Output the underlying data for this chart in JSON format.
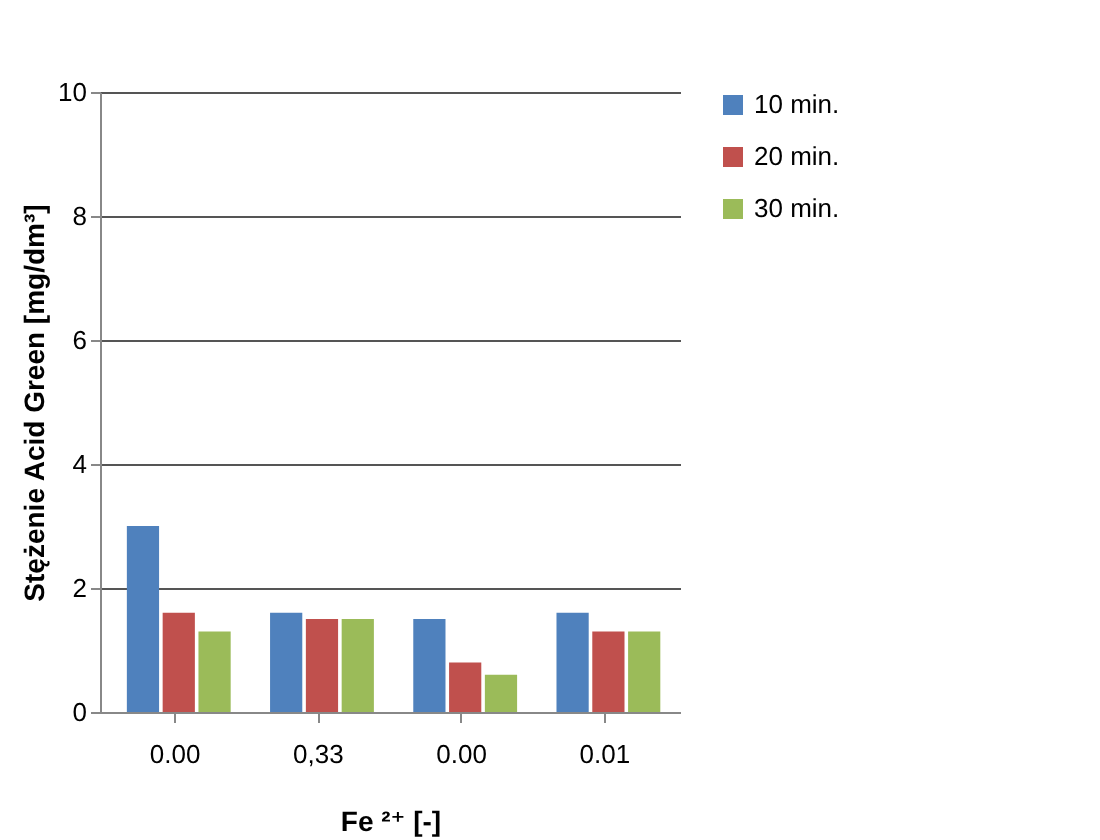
{
  "chart_data": {
    "type": "bar",
    "xlabel": "Fe ²⁺ [-]",
    "ylabel": "Stężenie  Acid Green [mg/dm³]",
    "categories": [
      "0.00",
      "0,33",
      "0.00",
      "0.01"
    ],
    "series": [
      {
        "name": "10 min.",
        "color": "#4f81bd",
        "values": [
          3.0,
          1.6,
          1.5,
          1.6
        ]
      },
      {
        "name": "20 min.",
        "color": "#c0504d",
        "values": [
          1.6,
          1.5,
          0.8,
          1.3
        ]
      },
      {
        "name": "30 min.",
        "color": "#9bbb59",
        "values": [
          1.3,
          1.5,
          0.6,
          1.3
        ]
      }
    ],
    "ylim": [
      0,
      10
    ],
    "yticks": [
      0,
      2,
      4,
      6,
      8,
      10
    ],
    "grid": "y",
    "legend": "right"
  }
}
